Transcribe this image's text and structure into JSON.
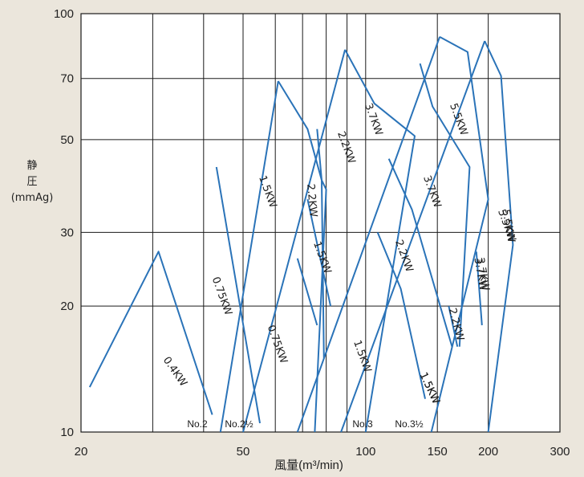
{
  "chart_data": {
    "type": "line",
    "ylabel_lines": [
      "静",
      "圧",
      "(mmAg)"
    ],
    "xlabel": "風量(m³/min)",
    "x_scale": "log",
    "y_scale": "log",
    "xlim": [
      20,
      300
    ],
    "ylim": [
      10,
      100
    ],
    "x_ticks": [
      {
        "value": 20,
        "label": "20"
      },
      {
        "value": 50,
        "label": "50"
      },
      {
        "value": 100,
        "label": "100"
      },
      {
        "value": 150,
        "label": "150"
      },
      {
        "value": 200,
        "label": "200"
      },
      {
        "value": 300,
        "label": "300"
      }
    ],
    "y_ticks": [
      {
        "value": 10,
        "label": "10"
      },
      {
        "value": 20,
        "label": "20"
      },
      {
        "value": 30,
        "label": "30"
      },
      {
        "value": 50,
        "label": "50"
      },
      {
        "value": 70,
        "label": "70"
      },
      {
        "value": 100,
        "label": "100"
      }
    ],
    "x_grid": [
      30,
      40,
      50,
      60,
      70,
      80,
      90,
      100,
      150,
      200
    ],
    "y_grid": [
      20,
      30,
      50,
      70
    ],
    "curve_color": "#2a73b8",
    "grid_color": "#1a1a1a",
    "series": [
      {
        "name": "0.4KW",
        "points": [
          [
            21,
            12.8
          ],
          [
            31,
            27
          ],
          [
            42,
            11
          ]
        ]
      },
      {
        "name": "0.75KW",
        "points": [
          [
            43,
            43
          ],
          [
            55,
            10.5
          ]
        ]
      },
      {
        "name": "1.5KW",
        "points": [
          [
            61,
            69
          ],
          [
            72,
            53
          ],
          [
            78,
            40
          ],
          [
            79,
            15
          ]
        ]
      },
      {
        "name": "2.2KW",
        "points": [
          [
            76,
            53
          ],
          [
            78,
            40
          ],
          [
            80,
            38
          ],
          [
            75,
            10
          ]
        ]
      },
      {
        "name": "3.7KW",
        "points": [
          [
            89,
            82
          ],
          [
            105,
            61
          ],
          [
            132,
            51
          ],
          [
            100,
            10
          ]
        ]
      },
      {
        "name": "5.5KW",
        "points": [
          [
            152,
            88
          ],
          [
            178,
            81
          ],
          [
            200,
            36
          ],
          [
            145,
            10
          ]
        ]
      },
      {
        "name": "5.5KW",
        "points": [
          [
            196,
            86
          ],
          [
            215,
            71
          ],
          [
            230,
            28
          ],
          [
            200,
            10
          ]
        ]
      },
      {
        "name": "1.5KW",
        "points": [
          [
            72,
            36
          ],
          [
            82,
            20
          ]
        ]
      },
      {
        "name": "3.7KW",
        "points": [
          [
            136,
            76
          ],
          [
            146,
            60
          ],
          [
            180,
            43
          ],
          [
            170,
            16
          ]
        ]
      },
      {
        "name": "2.2KW",
        "points": [
          [
            114,
            45
          ],
          [
            130,
            34
          ],
          [
            163,
            16
          ]
        ]
      },
      {
        "name": "0.75KW",
        "points": [
          [
            68,
            26
          ],
          [
            76,
            18
          ]
        ]
      },
      {
        "name": "1.5KW",
        "points": [
          [
            107,
            30
          ],
          [
            122,
            22
          ],
          [
            140,
            12
          ]
        ]
      },
      {
        "name": "2.2KW",
        "points": [
          [
            160,
            20
          ],
          [
            168,
            16
          ]
        ]
      },
      {
        "name": "3.7KW",
        "points": [
          [
            187,
            27
          ],
          [
            193,
            18
          ]
        ]
      }
    ],
    "fan_lines": [
      {
        "name": "No.2",
        "points": [
          [
            44,
            10
          ],
          [
            61,
            69
          ]
        ]
      },
      {
        "name": "No.2½",
        "points": [
          [
            50,
            10
          ],
          [
            89,
            82
          ]
        ]
      },
      {
        "name": "No.3",
        "points": [
          [
            68,
            10
          ],
          [
            152,
            88
          ]
        ]
      },
      {
        "name": "No.3½",
        "points": [
          [
            87,
            10
          ],
          [
            196,
            86
          ]
        ]
      }
    ],
    "curve_labels": [
      "0.4KW",
      "0.75KW",
      "1.5KW",
      "2.2KW",
      "3.7KW",
      "5.5KW",
      "0.75KW",
      "1.5KW",
      "2.2KW",
      "3.7KW",
      "5.5KW",
      "1.5KW",
      "2.2KW",
      "3.7KW",
      "1.5KW",
      "2.2KW",
      "3.7KW",
      "5.5KW",
      "1.5KW"
    ],
    "fan_labels": [
      "No.2",
      "No.2½",
      "No.3",
      "No.3½"
    ]
  }
}
